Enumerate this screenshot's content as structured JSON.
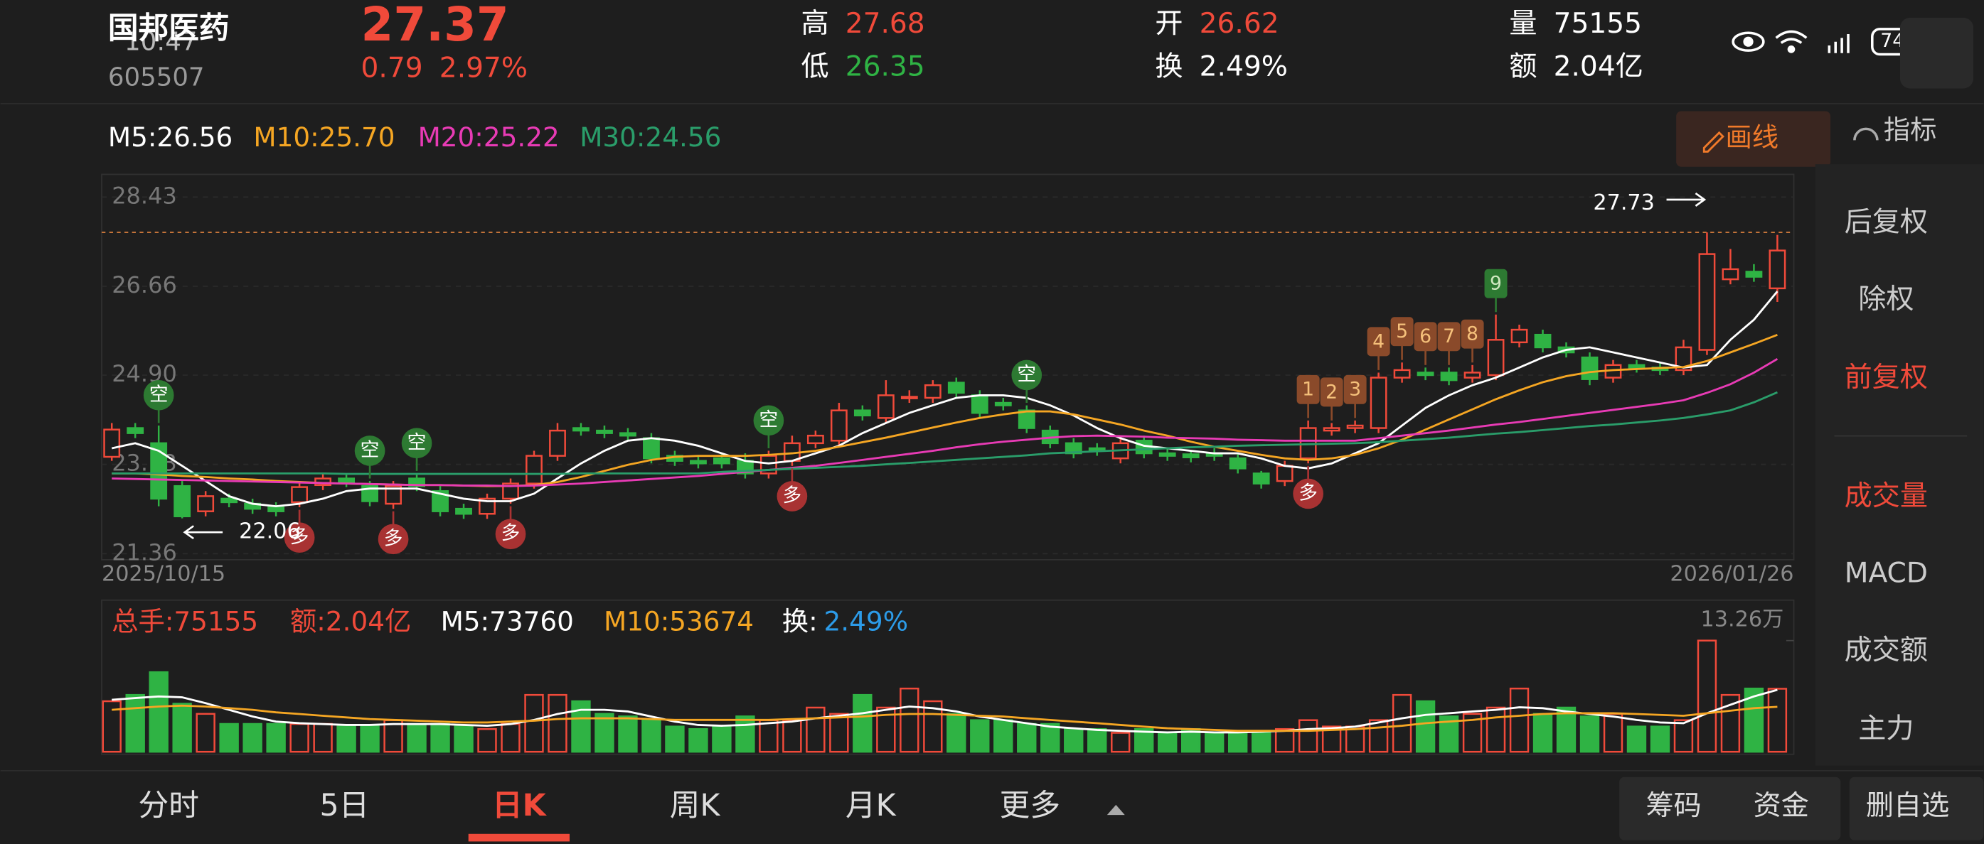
{
  "status_bar": {
    "time": "10:47",
    "battery": "74"
  },
  "header": {
    "name": "国邦医药",
    "code": "605507",
    "price": "27.37",
    "change": "0.79",
    "change_pct": "2.97%",
    "high_label": "高",
    "high": "27.68",
    "low_label": "低",
    "low": "26.35",
    "open_label": "开",
    "open": "26.62",
    "turnover_label": "换",
    "turnover": "2.49%",
    "volume_label": "量",
    "volume": "75155",
    "amount_label": "额",
    "amount": "2.04亿"
  },
  "toolbar": {
    "indicator": "指标",
    "draw": "画线"
  },
  "chart_data": [
    {
      "type": "candlestick",
      "up_color": "#f04a3a",
      "down_color": "#2fb344",
      "categories": [
        "2025/10/15",
        null,
        null,
        null,
        null,
        null,
        null,
        null,
        null,
        null,
        null,
        null,
        null,
        null,
        null,
        null,
        null,
        null,
        null,
        null,
        null,
        null,
        null,
        null,
        null,
        null,
        null,
        null,
        null,
        null,
        null,
        null,
        null,
        null,
        null,
        null,
        null,
        null,
        null,
        null,
        null,
        null,
        null,
        null,
        null,
        null,
        null,
        null,
        null,
        null,
        null,
        null,
        null,
        null,
        null,
        null,
        null,
        null,
        null,
        null,
        null,
        null,
        null,
        null,
        null,
        null,
        null,
        null,
        null,
        null,
        null,
        "2026/01/26"
      ],
      "open": [
        23.28,
        23.85,
        23.55,
        22.7,
        22.2,
        22.45,
        22.35,
        22.28,
        22.38,
        22.72,
        22.85,
        22.7,
        22.35,
        22.85,
        22.6,
        22.25,
        22.15,
        22.45,
        22.75,
        23.3,
        23.85,
        23.8,
        23.75,
        23.65,
        23.3,
        23.2,
        23.25,
        23.2,
        22.95,
        23.2,
        23.55,
        23.6,
        24.2,
        24.05,
        24.45,
        24.45,
        24.75,
        24.5,
        24.35,
        24.2,
        23.8,
        23.55,
        23.45,
        23.25,
        23.6,
        23.35,
        23.33,
        23.35,
        23.25,
        22.95,
        22.8,
        23.25,
        23.8,
        23.85,
        23.85,
        24.85,
        24.95,
        24.95,
        24.85,
        24.9,
        25.55,
        25.7,
        25.45,
        25.25,
        24.85,
        25.1,
        25.05,
        25.0,
        25.4,
        26.8,
        26.95,
        26.62
      ],
      "close": [
        23.82,
        23.75,
        22.45,
        22.1,
        22.5,
        22.38,
        22.25,
        22.2,
        22.68,
        22.85,
        22.78,
        22.4,
        22.7,
        22.7,
        22.2,
        22.15,
        22.45,
        22.75,
        23.3,
        23.8,
        23.8,
        23.75,
        23.7,
        23.25,
        23.2,
        23.15,
        23.15,
        22.95,
        23.3,
        23.55,
        23.7,
        24.2,
        24.1,
        24.5,
        24.47,
        24.7,
        24.55,
        24.15,
        24.3,
        23.85,
        23.55,
        23.35,
        23.4,
        23.55,
        23.35,
        23.3,
        23.27,
        23.3,
        23.05,
        22.75,
        23.1,
        23.85,
        23.85,
        23.9,
        24.85,
        25.0,
        24.9,
        24.8,
        24.95,
        25.6,
        25.8,
        25.45,
        25.35,
        24.82,
        25.1,
        25.05,
        25.0,
        25.45,
        27.3,
        27.0,
        26.85,
        27.37
      ],
      "high": [
        23.95,
        23.95,
        23.9,
        22.8,
        22.6,
        22.55,
        22.45,
        22.38,
        22.78,
        22.95,
        22.95,
        22.8,
        22.8,
        22.95,
        22.7,
        22.35,
        22.55,
        22.85,
        23.4,
        23.95,
        23.95,
        23.9,
        23.85,
        23.75,
        23.4,
        23.3,
        23.35,
        23.35,
        23.4,
        23.7,
        23.8,
        24.35,
        24.3,
        24.8,
        24.6,
        24.8,
        24.85,
        24.6,
        24.45,
        24.3,
        23.9,
        23.65,
        23.55,
        23.7,
        23.7,
        23.45,
        23.4,
        23.45,
        23.35,
        23.0,
        23.2,
        24.0,
        23.95,
        24.0,
        24.95,
        25.15,
        25.05,
        25.05,
        25.1,
        26.1,
        25.9,
        25.8,
        25.55,
        25.35,
        25.2,
        25.2,
        25.15,
        25.6,
        27.73,
        27.4,
        27.1,
        27.68
      ],
      "low": [
        23.2,
        23.65,
        22.3,
        22.06,
        22.1,
        22.28,
        22.15,
        22.1,
        22.28,
        22.62,
        22.68,
        22.3,
        22.25,
        22.6,
        22.1,
        22.05,
        22.05,
        22.35,
        22.65,
        23.2,
        23.7,
        23.65,
        23.6,
        23.15,
        23.1,
        23.05,
        23.05,
        22.85,
        22.85,
        23.1,
        23.45,
        23.5,
        24.0,
        23.95,
        24.35,
        24.35,
        24.45,
        24.05,
        24.2,
        23.75,
        23.45,
        23.25,
        23.3,
        23.15,
        23.25,
        23.2,
        23.17,
        23.2,
        22.95,
        22.65,
        22.7,
        23.15,
        23.7,
        23.75,
        23.75,
        24.75,
        24.8,
        24.7,
        24.75,
        24.8,
        25.45,
        25.35,
        25.25,
        24.7,
        24.75,
        24.95,
        24.9,
        24.9,
        25.3,
        26.7,
        26.75,
        26.35
      ],
      "series": [
        {
          "name": "M5:26.56",
          "color": "#ffffff",
          "values": [
            23.45,
            23.55,
            23.4,
            23.1,
            22.8,
            22.5,
            22.35,
            22.3,
            22.35,
            22.45,
            22.6,
            22.65,
            22.65,
            22.65,
            22.55,
            22.45,
            22.4,
            22.4,
            22.55,
            22.85,
            23.15,
            23.4,
            23.6,
            23.65,
            23.6,
            23.5,
            23.35,
            23.2,
            23.15,
            23.2,
            23.35,
            23.5,
            23.75,
            23.95,
            24.15,
            24.3,
            24.45,
            24.5,
            24.5,
            24.45,
            24.3,
            24.1,
            23.85,
            23.65,
            23.5,
            23.45,
            23.4,
            23.35,
            23.35,
            23.25,
            23.1,
            23.05,
            23.15,
            23.35,
            23.55,
            23.9,
            24.25,
            24.5,
            24.7,
            24.85,
            25.05,
            25.25,
            25.4,
            25.45,
            25.35,
            25.25,
            25.15,
            25.05,
            25.1,
            25.6,
            26.0,
            26.56
          ]
        },
        {
          "name": "M10:25.70",
          "color": "#f5a623",
          "values": [
            22.95,
            22.95,
            22.93,
            22.9,
            22.88,
            22.85,
            22.83,
            22.8,
            22.78,
            22.76,
            22.75,
            22.74,
            22.73,
            22.72,
            22.72,
            22.71,
            22.7,
            22.7,
            22.72,
            22.78,
            22.88,
            23.0,
            23.12,
            23.22,
            23.28,
            23.3,
            23.3,
            23.3,
            23.32,
            23.35,
            23.4,
            23.48,
            23.57,
            23.66,
            23.76,
            23.86,
            23.96,
            24.05,
            24.12,
            24.18,
            24.18,
            24.12,
            24.02,
            23.92,
            23.8,
            23.7,
            23.58,
            23.48,
            23.4,
            23.32,
            23.25,
            23.22,
            23.25,
            23.32,
            23.45,
            23.62,
            23.82,
            24.02,
            24.22,
            24.42,
            24.6,
            24.76,
            24.88,
            24.96,
            25.0,
            25.02,
            25.04,
            25.06,
            25.18,
            25.35,
            25.52,
            25.7
          ]
        },
        {
          "name": "M20:25.22",
          "color": "#e83bb5",
          "values": [
            22.85,
            22.84,
            22.83,
            22.82,
            22.81,
            22.8,
            22.79,
            22.78,
            22.77,
            22.76,
            22.75,
            22.74,
            22.73,
            22.72,
            22.72,
            22.71,
            22.71,
            22.7,
            22.71,
            22.73,
            22.75,
            22.78,
            22.81,
            22.84,
            22.87,
            22.9,
            22.94,
            22.98,
            23.02,
            23.06,
            23.1,
            23.16,
            23.22,
            23.28,
            23.34,
            23.4,
            23.47,
            23.53,
            23.58,
            23.62,
            23.66,
            23.69,
            23.7,
            23.69,
            23.68,
            23.66,
            23.65,
            23.64,
            23.62,
            23.61,
            23.6,
            23.6,
            23.6,
            23.6,
            23.65,
            23.7,
            23.75,
            23.8,
            23.86,
            23.92,
            23.97,
            24.03,
            24.09,
            24.15,
            24.21,
            24.27,
            24.33,
            24.4,
            24.55,
            24.72,
            24.95,
            25.22
          ]
        },
        {
          "name": "M30:24.56",
          "color": "#2a9d6a",
          "values": [
            22.95,
            22.95,
            22.95,
            22.95,
            22.95,
            22.95,
            22.95,
            22.95,
            22.95,
            22.95,
            22.94,
            22.94,
            22.94,
            22.94,
            22.94,
            22.94,
            22.94,
            22.94,
            22.94,
            22.94,
            22.95,
            22.95,
            22.95,
            22.95,
            22.95,
            22.95,
            22.98,
            23.0,
            23.02,
            23.04,
            23.06,
            23.08,
            23.1,
            23.13,
            23.16,
            23.19,
            23.22,
            23.25,
            23.28,
            23.31,
            23.35,
            23.37,
            23.39,
            23.41,
            23.43,
            23.45,
            23.47,
            23.48,
            23.5,
            23.51,
            23.52,
            23.53,
            23.54,
            23.55,
            23.57,
            23.6,
            23.63,
            23.66,
            23.7,
            23.74,
            23.77,
            23.81,
            23.85,
            23.89,
            23.92,
            23.96,
            24.0,
            24.05,
            24.12,
            24.2,
            24.36,
            24.56
          ]
        }
      ],
      "upper_signals": [
        null,
        null,
        "空",
        null,
        null,
        null,
        null,
        null,
        null,
        null,
        null,
        "空",
        null,
        "空",
        null,
        null,
        null,
        null,
        null,
        null,
        null,
        null,
        null,
        null,
        null,
        null,
        null,
        null,
        "空",
        null,
        null,
        null,
        null,
        null,
        null,
        null,
        null,
        null,
        null,
        "空",
        null,
        null,
        null,
        null,
        null,
        null,
        null,
        null,
        null,
        null,
        null,
        "1",
        "2",
        "3",
        "4",
        "5",
        "6",
        "7",
        "8",
        "9",
        null,
        null,
        null,
        null,
        null,
        null,
        null,
        null,
        null,
        null,
        null,
        null
      ],
      "lower_signals": [
        null,
        null,
        null,
        null,
        null,
        null,
        null,
        null,
        "多",
        null,
        null,
        null,
        "多",
        null,
        null,
        null,
        null,
        "多",
        null,
        null,
        null,
        null,
        null,
        null,
        null,
        null,
        null,
        null,
        null,
        "多",
        null,
        null,
        null,
        null,
        null,
        null,
        null,
        null,
        null,
        null,
        null,
        null,
        null,
        null,
        null,
        null,
        null,
        null,
        null,
        null,
        null,
        "多",
        null,
        null,
        null,
        null,
        null,
        null,
        null,
        null,
        null,
        null,
        null,
        null,
        null,
        null,
        null,
        null,
        null,
        null,
        null,
        null
      ],
      "max_label": 27.73,
      "min_label": 22.06,
      "ylim": [
        21.24,
        28.88
      ],
      "yticks": [
        21.36,
        23.13,
        {
          "value": 24.9,
          "label": "24.90"
        },
        26.66,
        28.43
      ],
      "grid": true
    },
    {
      "type": "bar",
      "legend_extra": [
        "总手:75155",
        "额:2.04亿",
        "换:",
        "2.49%"
      ],
      "values": [
        60280,
        67800,
        94900,
        57300,
        45200,
        33200,
        33200,
        33200,
        33200,
        33200,
        30100,
        30100,
        37700,
        33200,
        33200,
        30100,
        27100,
        33200,
        67800,
        67800,
        60280,
        45200,
        42200,
        37700,
        30100,
        27100,
        30100,
        42200,
        37700,
        37700,
        52700,
        45200,
        67800,
        52700,
        75400,
        60280,
        45200,
        37700,
        37700,
        33200,
        33200,
        27100,
        27100,
        22600,
        27100,
        22600,
        27100,
        22600,
        22600,
        22600,
        27100,
        37700,
        30100,
        30100,
        37700,
        67800,
        60280,
        42200,
        45200,
        52700,
        75400,
        45200,
        52700,
        42200,
        45200,
        30100,
        30100,
        37700,
        132600,
        67800,
        75400,
        75155
      ],
      "series": [
        {
          "name": "M5:73760",
          "color": "#ffffff",
          "values": [
            62000,
            64000,
            66000,
            65000,
            58000,
            50000,
            42000,
            36000,
            34000,
            33000,
            32000,
            32000,
            33000,
            33000,
            33000,
            32000,
            31000,
            33000,
            38000,
            45000,
            50000,
            50000,
            48000,
            42000,
            36000,
            32000,
            31000,
            32000,
            34000,
            36000,
            40000,
            43000,
            46000,
            50000,
            54000,
            52000,
            48000,
            42000,
            38000,
            34000,
            30000,
            28000,
            26000,
            25000,
            24000,
            23000,
            24000,
            23000,
            23000,
            24000,
            25000,
            27000,
            28000,
            30000,
            35000,
            40000,
            44000,
            46000,
            48000,
            50000,
            53000,
            52000,
            48000,
            45000,
            42000,
            38000,
            35000,
            34000,
            46000,
            56000,
            66000,
            73760
          ]
        },
        {
          "name": "M10:53674",
          "color": "#f5a623",
          "values": [
            50000,
            52000,
            54000,
            55000,
            54000,
            52000,
            50000,
            47000,
            45000,
            43000,
            41000,
            39000,
            38000,
            37000,
            36000,
            35000,
            35000,
            36000,
            37000,
            39000,
            40000,
            40000,
            40000,
            39000,
            38000,
            38000,
            38000,
            38000,
            38000,
            39000,
            40000,
            41000,
            42000,
            44000,
            45000,
            45000,
            44000,
            43000,
            42000,
            40000,
            38000,
            36000,
            34000,
            32000,
            30000,
            28000,
            27000,
            26000,
            25000,
            25000,
            25000,
            25000,
            26000,
            27000,
            29000,
            31000,
            34000,
            36000,
            38000,
            41000,
            43000,
            45000,
            46000,
            46000,
            46000,
            45000,
            44000,
            43000,
            46000,
            49000,
            52000,
            53674
          ]
        }
      ],
      "ylim": [
        0,
        132600
      ],
      "yticks": [
        {
          "value": 132600,
          "label": "13.26万"
        }
      ]
    }
  ],
  "side_menu": [
    "后复权",
    "除权",
    "前复权",
    "成交量",
    "MACD",
    "成交额",
    "主力"
  ],
  "tabs": [
    "分时",
    "5日",
    "日K",
    "周K",
    "月K",
    "更多"
  ],
  "buttons": [
    "筹码",
    "资金",
    "删自选"
  ]
}
